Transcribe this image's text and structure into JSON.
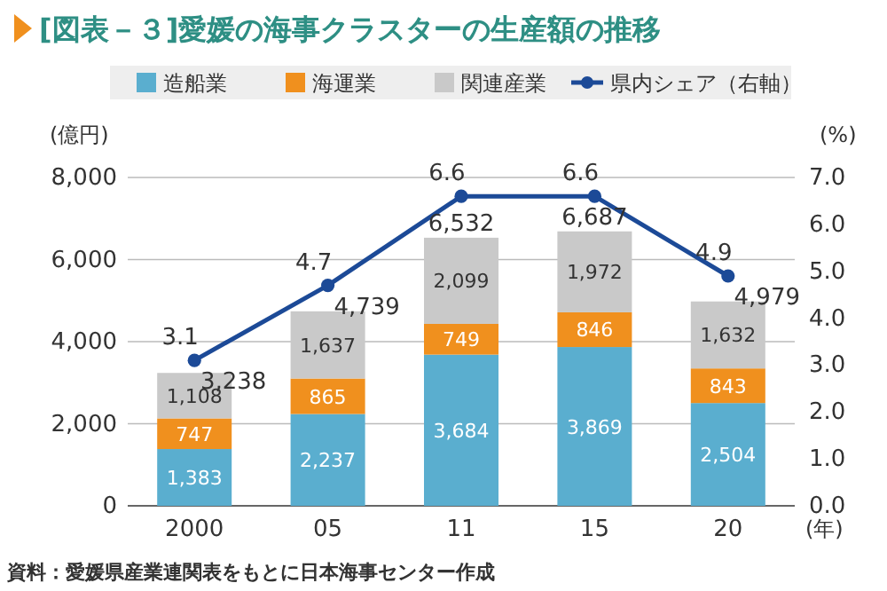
{
  "chart_data": {
    "type": "bar",
    "title": "[図表－３]愛媛の海事クラスターの生産額の推移",
    "categories": [
      "2000",
      "05",
      "11",
      "15",
      "20"
    ],
    "xlabel": "(年)",
    "ylabel": "(億円)",
    "y2label": "(%)",
    "stacked": true,
    "legend": "top",
    "grid": "y",
    "data_labels": true,
    "marker": "circle",
    "line_style": "solid",
    "series": [
      {
        "name": "造船業",
        "color": "#5aaecf",
        "values": [
          1383,
          2237,
          3684,
          3869,
          2504
        ],
        "value_labels": [
          "1,383",
          "2,237",
          "3,684",
          "3,869",
          "2,504"
        ]
      },
      {
        "name": "海運業",
        "color": "#f0901e",
        "values": [
          747,
          865,
          749,
          846,
          843
        ],
        "value_labels": [
          "747",
          "865",
          "749",
          "846",
          "843"
        ]
      },
      {
        "name": "関連産業",
        "color": "#c9c9c9",
        "values": [
          1108,
          1637,
          2099,
          1972,
          1632
        ],
        "value_labels": [
          "1,108",
          "1,637",
          "2,099",
          "1,972",
          "1,632"
        ]
      },
      {
        "name": "県内シェア（右軸）",
        "type": "line",
        "axis": "y2",
        "color": "#1c4a97",
        "values": [
          3.1,
          4.7,
          6.6,
          6.6,
          4.9
        ]
      }
    ],
    "totals": [
      "3,238",
      "4,739",
      "6,532",
      "6,687",
      "4,979"
    ],
    "ylim": [
      0,
      8000
    ],
    "yticks": [
      0,
      {
        "value": 2000,
        "label": "2,000"
      },
      {
        "value": 4000,
        "label": "4,000"
      },
      {
        "value": 6000,
        "label": "6,000"
      },
      {
        "value": 8000,
        "label": "8,000"
      }
    ],
    "y2lim": [
      0,
      7
    ],
    "y2ticks": [
      {
        "value": 0,
        "label": "0.0"
      },
      {
        "value": 1,
        "label": "1.0"
      },
      {
        "value": 2,
        "label": "2.0"
      },
      {
        "value": 3,
        "label": "3.0"
      },
      {
        "value": 4,
        "label": "4.0"
      },
      {
        "value": 5,
        "label": "5.0"
      },
      {
        "value": 6,
        "label": "6.0"
      },
      {
        "value": 7,
        "label": "7.0"
      }
    ],
    "annotations": [
      "資料：愛媛県産業連関表をもとに日本海事センター作成"
    ]
  }
}
